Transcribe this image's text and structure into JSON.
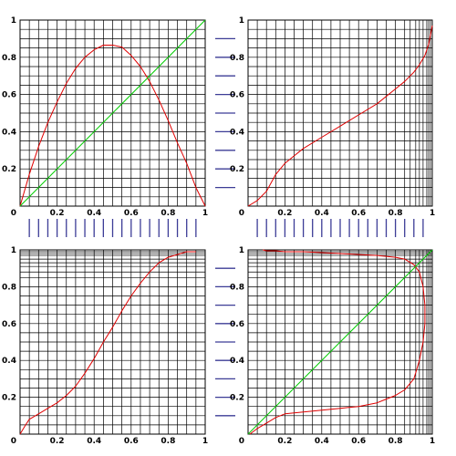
{
  "colors": {
    "curve": "#e00000",
    "diagonal": "#00cc00",
    "grid": "#000000",
    "separator": "#3c3c96"
  },
  "tick_values": [
    0.2,
    0.4,
    0.6,
    0.8,
    1
  ],
  "tick_labels": [
    "0.2",
    "0.4",
    "0.6",
    "0.8",
    "1"
  ],
  "origin_label": "0",
  "separator_marks": {
    "horizontal": [
      0.1,
      0.2,
      0.3,
      0.4,
      0.5,
      0.6,
      0.7,
      0.8,
      0.9
    ],
    "vertical": [
      0.05,
      0.1,
      0.15,
      0.2,
      0.25,
      0.3,
      0.35,
      0.4,
      0.45,
      0.5,
      0.55,
      0.6,
      0.65,
      0.7,
      0.75,
      0.8,
      0.85,
      0.9,
      0.95
    ]
  },
  "chart_data": [
    {
      "type": "line",
      "xlim": [
        0,
        1
      ],
      "ylim": [
        0,
        1
      ],
      "grid": true,
      "x_grid": [
        0.05,
        0.1,
        0.15,
        0.2,
        0.25,
        0.3,
        0.35,
        0.4,
        0.45,
        0.5,
        0.55,
        0.6,
        0.65,
        0.7,
        0.75,
        0.8,
        0.85,
        0.9,
        0.95
      ],
      "y_grid": [
        0.05,
        0.1,
        0.15,
        0.2,
        0.25,
        0.3,
        0.35,
        0.4,
        0.45,
        0.5,
        0.55,
        0.6,
        0.65,
        0.7,
        0.75,
        0.8,
        0.85,
        0.9,
        0.95
      ],
      "series": [
        {
          "style": "curve",
          "x": [
            0,
            0.05,
            0.1,
            0.15,
            0.2,
            0.25,
            0.3,
            0.35,
            0.4,
            0.45,
            0.5,
            0.55,
            0.6,
            0.65,
            0.7,
            0.75,
            0.8,
            0.85,
            0.9,
            0.95,
            1.0
          ],
          "y": [
            0,
            0.17,
            0.32,
            0.45,
            0.56,
            0.66,
            0.74,
            0.8,
            0.84,
            0.865,
            0.865,
            0.855,
            0.81,
            0.75,
            0.67,
            0.57,
            0.46,
            0.34,
            0.23,
            0.1,
            0
          ]
        },
        {
          "style": "diagonal",
          "x": [
            0,
            1
          ],
          "y": [
            0,
            1
          ]
        }
      ]
    },
    {
      "type": "line",
      "xlim": [
        0,
        1
      ],
      "ylim": [
        0,
        1
      ],
      "grid": true,
      "x_grid": [
        0.05,
        0.1,
        0.15,
        0.2,
        0.25,
        0.3,
        0.35,
        0.4,
        0.45,
        0.5,
        0.55,
        0.6,
        0.65,
        0.7,
        0.75,
        0.8,
        0.85,
        0.88,
        0.91,
        0.93,
        0.95,
        0.97,
        0.98,
        0.99
      ],
      "y_grid": [
        0.05,
        0.1,
        0.15,
        0.2,
        0.25,
        0.3,
        0.35,
        0.4,
        0.45,
        0.5,
        0.55,
        0.6,
        0.65,
        0.7,
        0.75,
        0.8,
        0.85,
        0.9,
        0.95
      ],
      "series": [
        {
          "style": "curve",
          "x": [
            0,
            0.05,
            0.1,
            0.15,
            0.2,
            0.25,
            0.3,
            0.4,
            0.5,
            0.6,
            0.7,
            0.8,
            0.85,
            0.9,
            0.93,
            0.96,
            0.98,
            1.0
          ],
          "y": [
            0,
            0.03,
            0.08,
            0.17,
            0.23,
            0.27,
            0.31,
            0.37,
            0.43,
            0.49,
            0.55,
            0.63,
            0.67,
            0.72,
            0.76,
            0.81,
            0.87,
            0.97
          ]
        }
      ]
    },
    {
      "type": "line",
      "xlim": [
        0,
        1
      ],
      "ylim": [
        0,
        1
      ],
      "grid": true,
      "x_grid": [
        0.05,
        0.1,
        0.15,
        0.2,
        0.25,
        0.3,
        0.35,
        0.4,
        0.45,
        0.5,
        0.55,
        0.6,
        0.65,
        0.7,
        0.75,
        0.8,
        0.85,
        0.9,
        0.95
      ],
      "y_grid": [
        0.05,
        0.1,
        0.15,
        0.2,
        0.25,
        0.3,
        0.35,
        0.4,
        0.45,
        0.5,
        0.55,
        0.6,
        0.65,
        0.7,
        0.75,
        0.8,
        0.85,
        0.88,
        0.91,
        0.93,
        0.95,
        0.97,
        0.98,
        0.99
      ],
      "series": [
        {
          "style": "curve",
          "x": [
            0,
            0.03,
            0.05,
            0.1,
            0.15,
            0.2,
            0.25,
            0.3,
            0.35,
            0.4,
            0.45,
            0.5,
            0.55,
            0.6,
            0.65,
            0.7,
            0.75,
            0.8,
            0.85,
            0.9,
            0.95
          ],
          "y": [
            0,
            0.05,
            0.08,
            0.11,
            0.14,
            0.17,
            0.21,
            0.26,
            0.33,
            0.41,
            0.5,
            0.58,
            0.67,
            0.75,
            0.82,
            0.88,
            0.93,
            0.96,
            0.975,
            0.99,
            0.99
          ]
        }
      ]
    },
    {
      "type": "line",
      "xlim": [
        0,
        1
      ],
      "ylim": [
        0,
        1
      ],
      "grid": true,
      "x_grid": [
        0.05,
        0.1,
        0.15,
        0.2,
        0.25,
        0.3,
        0.35,
        0.4,
        0.45,
        0.5,
        0.55,
        0.6,
        0.65,
        0.7,
        0.75,
        0.8,
        0.85,
        0.88,
        0.91,
        0.93,
        0.95,
        0.97,
        0.98,
        0.99
      ],
      "y_grid": [
        0.05,
        0.1,
        0.15,
        0.2,
        0.25,
        0.3,
        0.35,
        0.4,
        0.45,
        0.5,
        0.55,
        0.6,
        0.65,
        0.7,
        0.75,
        0.8,
        0.85,
        0.88,
        0.91,
        0.93,
        0.95,
        0.97,
        0.98,
        0.99
      ],
      "series": [
        {
          "style": "curve",
          "x": [
            0.01,
            0.05,
            0.1,
            0.15,
            0.2,
            0.3,
            0.4,
            0.5,
            0.6,
            0.7,
            0.75,
            0.8,
            0.85,
            0.9,
            0.93,
            0.95,
            0.96,
            0.96,
            0.95,
            0.93,
            0.9,
            0.85,
            0.8,
            0.7,
            0.6,
            0.5,
            0.4,
            0.3,
            0.2,
            0.15,
            0.1,
            0.08
          ],
          "y": [
            0,
            0.03,
            0.06,
            0.09,
            0.11,
            0.12,
            0.13,
            0.14,
            0.15,
            0.17,
            0.19,
            0.21,
            0.24,
            0.3,
            0.4,
            0.5,
            0.6,
            0.7,
            0.8,
            0.88,
            0.92,
            0.95,
            0.96,
            0.97,
            0.975,
            0.98,
            0.985,
            0.99,
            0.99,
            0.995,
            0.995,
            1.0
          ]
        },
        {
          "style": "diagonal",
          "x": [
            0,
            1
          ],
          "y": [
            0,
            1
          ]
        }
      ]
    }
  ]
}
